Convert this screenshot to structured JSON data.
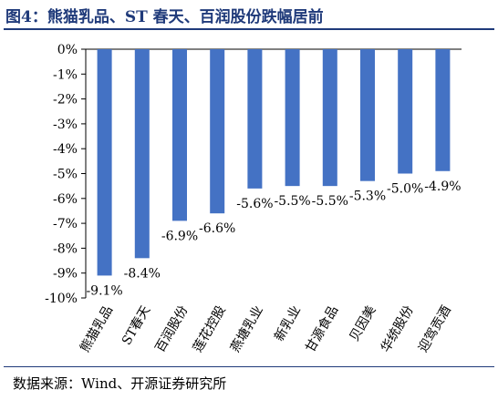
{
  "figure_title": "图4：熊猫乳品、ST 春天、百润股份跌幅居前",
  "source_note": "数据来源：Wind、开源证券研究所",
  "colors": {
    "bar": "#4472c4",
    "title": "#1f3a7a",
    "axis": "#000000"
  },
  "chart_data": {
    "type": "bar",
    "categories": [
      "熊猫乳品",
      "ST春天",
      "百润股份",
      "莲花控股",
      "燕塘乳业",
      "新乳业",
      "甘源食品",
      "贝因美",
      "华统股份",
      "迎驾贡酒"
    ],
    "values": [
      -9.1,
      -8.4,
      -6.9,
      -6.6,
      -5.6,
      -5.5,
      -5.5,
      -5.3,
      -5.0,
      -4.9
    ],
    "data_labels": [
      "-9.1%",
      "-8.4%",
      "-6.9%",
      "-6.6%",
      "-5.6%",
      "-5.5%",
      "-5.5%",
      "-5.3%",
      "-5.0%",
      "-4.9%"
    ],
    "y_ticks": [
      "0%",
      "-1%",
      "-2%",
      "-3%",
      "-4%",
      "-5%",
      "-6%",
      "-7%",
      "-8%",
      "-9%",
      "-10%"
    ],
    "ylim": [
      -10,
      0
    ],
    "grid": false,
    "legend": "none"
  }
}
